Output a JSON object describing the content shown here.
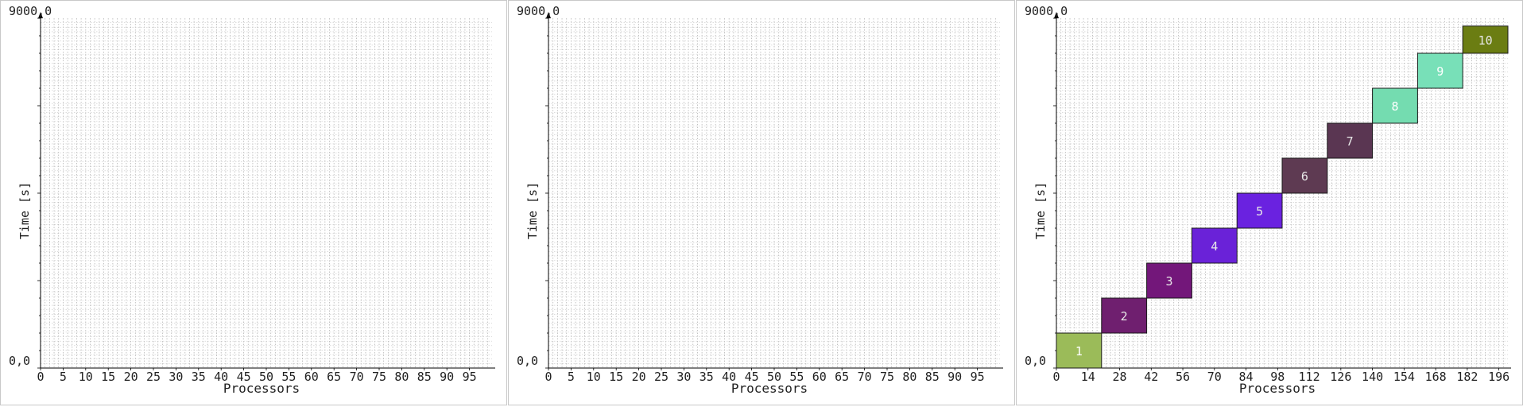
{
  "chart_data": [
    {
      "type": "gantt",
      "xlabel": "Processors",
      "ylabel": "Time [s]",
      "ymin_label": "0,0",
      "ymax_label": "9000,0",
      "ylim": [
        0,
        9000
      ],
      "x_ticks": [
        0,
        5,
        10,
        15,
        20,
        25,
        30,
        35,
        40,
        45,
        50,
        55,
        60,
        65,
        70,
        75,
        80,
        85,
        90,
        95
      ],
      "xlim": [
        0,
        100
      ],
      "grid": true,
      "jobs": []
    },
    {
      "type": "gantt",
      "xlabel": "Processors",
      "ylabel": "Time [s]",
      "ymin_label": "0,0",
      "ymax_label": "9000,0",
      "ylim": [
        0,
        9000
      ],
      "x_ticks": [
        0,
        5,
        10,
        15,
        20,
        25,
        30,
        35,
        40,
        45,
        50,
        55,
        60,
        65,
        70,
        75,
        80,
        85,
        90,
        95
      ],
      "xlim": [
        0,
        100
      ],
      "grid": true,
      "jobs": []
    },
    {
      "type": "gantt",
      "xlabel": "Processors",
      "ylabel": "Time [s]",
      "ymin_label": "0,0",
      "ymax_label": "9000,0",
      "ylim": [
        0,
        9000
      ],
      "x_ticks": [
        0,
        14,
        28,
        42,
        56,
        70,
        84,
        98,
        112,
        126,
        140,
        154,
        168,
        182,
        196
      ],
      "xlim": [
        0,
        200
      ],
      "grid": true,
      "jobs": [
        {
          "label": "1",
          "x_start": 0,
          "x_end": 20,
          "t_start": 0,
          "t_end": 900,
          "color": "#9bbb59"
        },
        {
          "label": "2",
          "x_start": 20,
          "x_end": 40,
          "t_start": 900,
          "t_end": 1800,
          "color": "#6f1f6f"
        },
        {
          "label": "3",
          "x_start": 40,
          "x_end": 60,
          "t_start": 1800,
          "t_end": 2700,
          "color": "#73177a"
        },
        {
          "label": "4",
          "x_start": 60,
          "x_end": 80,
          "t_start": 2700,
          "t_end": 3600,
          "color": "#6a22d8"
        },
        {
          "label": "5",
          "x_start": 80,
          "x_end": 100,
          "t_start": 3600,
          "t_end": 4500,
          "color": "#6a22e0"
        },
        {
          "label": "6",
          "x_start": 100,
          "x_end": 120,
          "t_start": 4500,
          "t_end": 5400,
          "color": "#5e3a52"
        },
        {
          "label": "7",
          "x_start": 120,
          "x_end": 140,
          "t_start": 5400,
          "t_end": 6300,
          "color": "#5a3652"
        },
        {
          "label": "8",
          "x_start": 140,
          "x_end": 160,
          "t_start": 6300,
          "t_end": 7200,
          "color": "#74dcb0"
        },
        {
          "label": "9",
          "x_start": 160,
          "x_end": 180,
          "t_start": 7200,
          "t_end": 8100,
          "color": "#78e0b8"
        },
        {
          "label": "10",
          "x_start": 180,
          "x_end": 200,
          "t_start": 8100,
          "t_end": 8800,
          "color": "#6b7d12"
        }
      ]
    }
  ]
}
